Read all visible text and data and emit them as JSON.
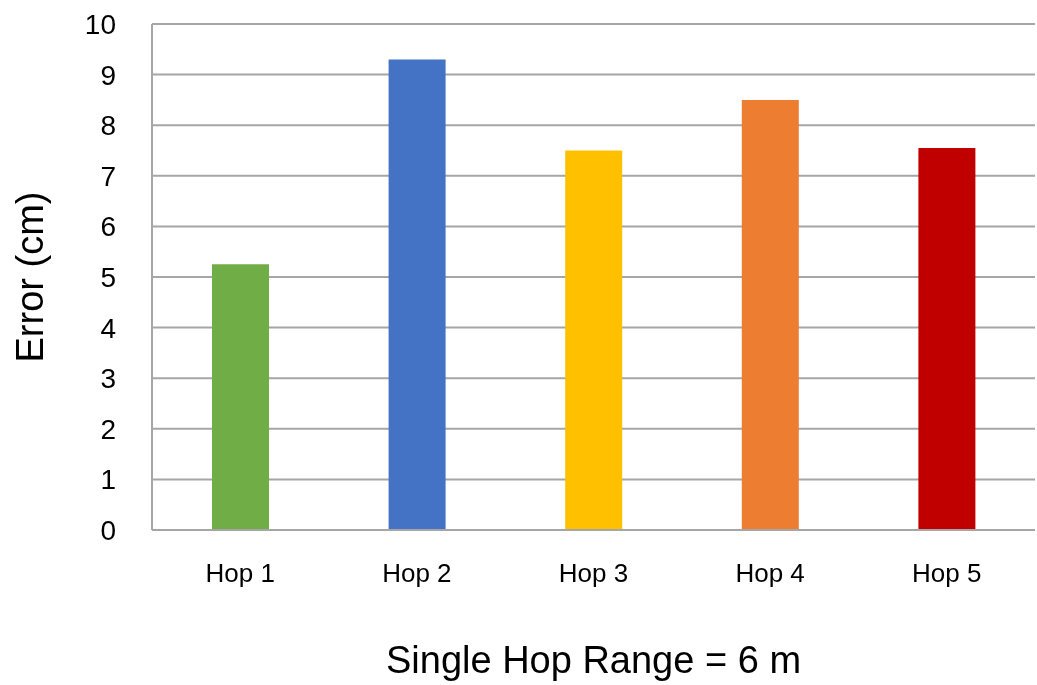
{
  "chart_data": {
    "type": "bar",
    "xlabel": "Single Hop Range = 6 m",
    "ylabel": "Error (cm)",
    "categories": [
      "Hop 1",
      "Hop 2",
      "Hop 3",
      "Hop 4",
      "Hop 5"
    ],
    "values": [
      5.25,
      9.3,
      7.5,
      8.5,
      7.55
    ],
    "colors": [
      "#70ad47",
      "#4472c4",
      "#ffc000",
      "#ed7d31",
      "#c00000"
    ],
    "ylim": [
      0,
      10
    ],
    "yticks": [
      0,
      1,
      2,
      3,
      4,
      5,
      6,
      7,
      8,
      9,
      10
    ],
    "grid": "y"
  }
}
